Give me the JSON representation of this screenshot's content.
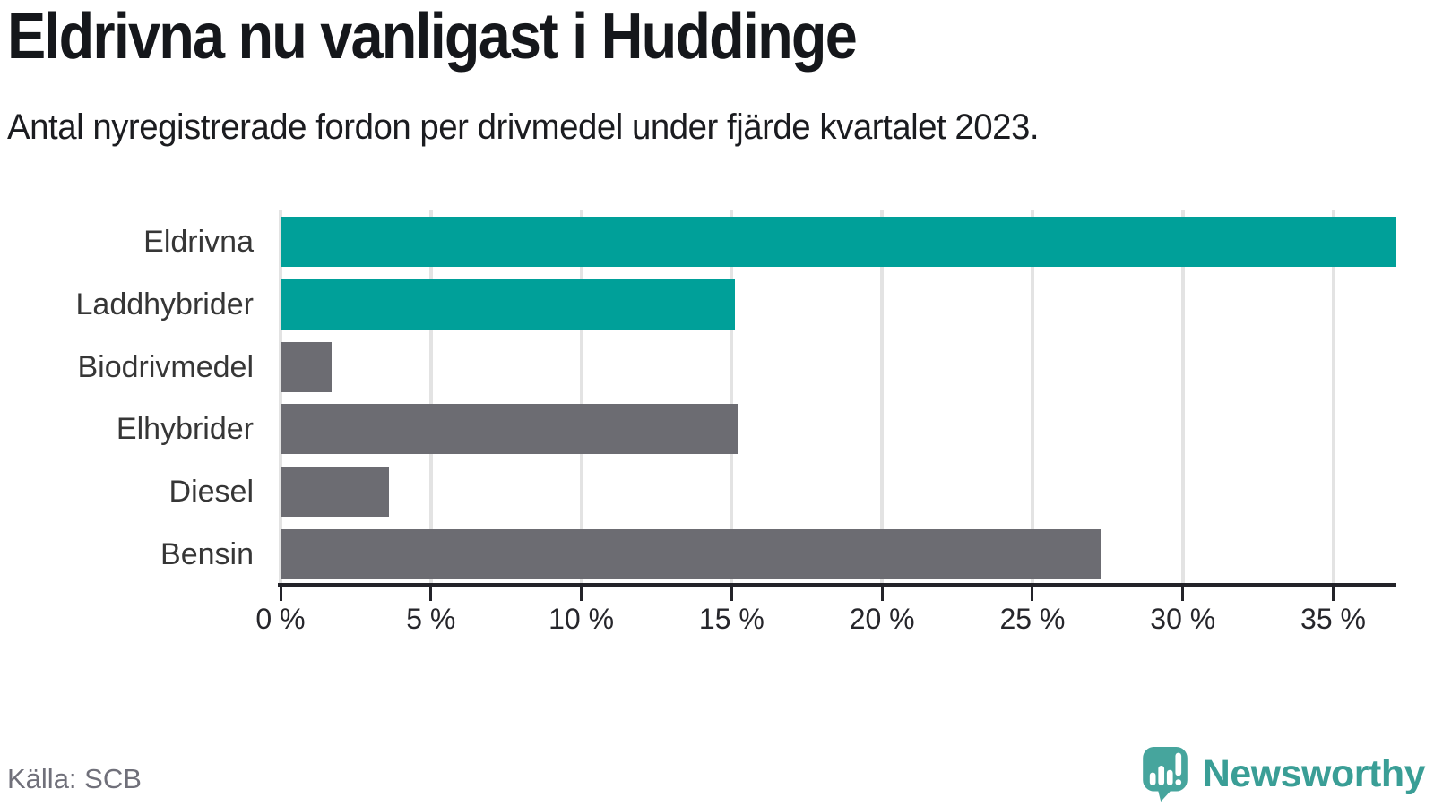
{
  "header": {
    "title": "Eldrivna nu vanligast i Huddinge",
    "subtitle": "Antal nyregistrerade fordon per drivmedel under fjärde kvartalet 2023."
  },
  "chart_data": {
    "type": "bar",
    "orientation": "horizontal",
    "title": "Eldrivna nu vanligast i Huddinge",
    "subtitle": "Antal nyregistrerade fordon per drivmedel under fjärde kvartalet 2023.",
    "categories": [
      "Eldrivna",
      "Laddhybrider",
      "Biodrivmedel",
      "Elhybrider",
      "Diesel",
      "Bensin"
    ],
    "values": [
      37.1,
      15.1,
      1.7,
      15.2,
      3.6,
      27.3
    ],
    "unit": "%",
    "bar_colors": [
      "#00a099",
      "#00a099",
      "#6c6c72",
      "#6c6c72",
      "#6c6c72",
      "#6c6c72"
    ],
    "highlight_color": "#00a099",
    "default_color": "#6c6c72",
    "xlim": [
      0,
      37.1
    ],
    "x_ticks": [
      0,
      5,
      10,
      15,
      20,
      25,
      30,
      35
    ],
    "x_tick_labels": [
      "0 %",
      "5 %",
      "10 %",
      "15 %",
      "20 %",
      "25 %",
      "30 %",
      "35 %"
    ],
    "grid": "vertical-gridlines-on",
    "legend": "none"
  },
  "footer": {
    "source": "Källa: SCB",
    "brand": "Newsworthy"
  },
  "colors": {
    "accent_teal": "#00a099",
    "bar_gray": "#6c6c72",
    "logo_teal": "#46a59d",
    "brand_text_teal": "#3a9e96",
    "gridline": "#e3e3e3",
    "axis": "#232329",
    "title_text": "#15171b",
    "label_text": "#363636",
    "source_text": "#70707a",
    "background": "#ffffff"
  }
}
